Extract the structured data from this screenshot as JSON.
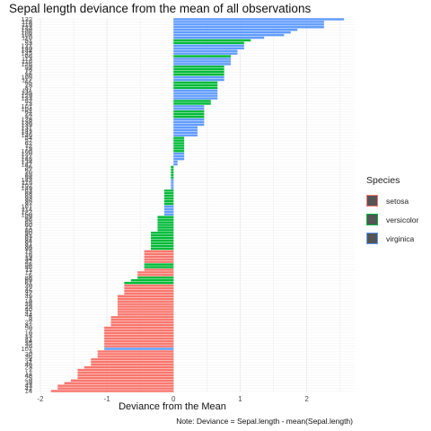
{
  "chart_data": {
    "type": "bar",
    "orientation": "horizontal",
    "title": "Sepal length deviance from the mean of all observations",
    "xlabel": "Deviance from the Mean",
    "ylabel": "",
    "caption": "Note: Deviance = Sepal.length - mean(Sepal.length)",
    "xlim": [
      -2.08,
      2.72
    ],
    "x_ticks": [
      -2,
      -1,
      0,
      1,
      2
    ],
    "grid": true,
    "legend": {
      "title": "Species",
      "position": "right",
      "entries": [
        {
          "name": "setosa",
          "color": "#F8766D"
        },
        {
          "name": "versicolor",
          "color": "#00BA38"
        },
        {
          "name": "virginica",
          "color": "#619CFF"
        }
      ]
    },
    "colors": {
      "setosa": "#F8766D",
      "versicolor": "#00BA38",
      "virginica": "#619CFF"
    },
    "bars": [
      {
        "label": "132",
        "value": 2.56,
        "species": "virginica"
      },
      {
        "label": "118",
        "value": 2.26,
        "species": "virginica"
      },
      {
        "label": "119",
        "value": 2.26,
        "species": "virginica"
      },
      {
        "label": "123",
        "value": 2.26,
        "species": "virginica"
      },
      {
        "label": "136",
        "value": 1.86,
        "species": "virginica"
      },
      {
        "label": "106",
        "value": 1.76,
        "species": "virginica"
      },
      {
        "label": "108",
        "value": 1.66,
        "species": "virginica"
      },
      {
        "label": "110",
        "value": 1.36,
        "species": "virginica"
      },
      {
        "label": "51",
        "value": 1.16,
        "species": "versicolor"
      },
      {
        "label": "53",
        "value": 1.06,
        "species": "versicolor"
      },
      {
        "label": "121",
        "value": 1.06,
        "species": "virginica"
      },
      {
        "label": "140",
        "value": 1.06,
        "species": "virginica"
      },
      {
        "label": "144",
        "value": 0.96,
        "species": "virginica"
      },
      {
        "label": "145",
        "value": 0.96,
        "species": "virginica"
      },
      {
        "label": "66",
        "value": 0.86,
        "species": "versicolor"
      },
      {
        "label": "113",
        "value": 0.86,
        "species": "virginica"
      },
      {
        "label": "116",
        "value": 0.86,
        "species": "virginica"
      },
      {
        "label": "126",
        "value": 0.86,
        "species": "virginica"
      },
      {
        "label": "59",
        "value": 0.76,
        "species": "versicolor"
      },
      {
        "label": "76",
        "value": 0.76,
        "species": "versicolor"
      },
      {
        "label": "77",
        "value": 0.76,
        "species": "versicolor"
      },
      {
        "label": "98",
        "value": 0.76,
        "species": "versicolor"
      },
      {
        "label": "105",
        "value": 0.76,
        "species": "virginica"
      },
      {
        "label": "117",
        "value": 0.76,
        "species": "virginica"
      },
      {
        "label": "55",
        "value": 0.66,
        "species": "versicolor"
      },
      {
        "label": "75",
        "value": 0.66,
        "species": "versicolor"
      },
      {
        "label": "87",
        "value": 0.66,
        "species": "versicolor"
      },
      {
        "label": "111",
        "value": 0.66,
        "species": "virginica"
      },
      {
        "label": "125",
        "value": 0.66,
        "species": "virginica"
      },
      {
        "label": "129",
        "value": 0.66,
        "species": "virginica"
      },
      {
        "label": "133",
        "value": 0.66,
        "species": "virginica"
      },
      {
        "label": "52",
        "value": 0.56,
        "species": "versicolor"
      },
      {
        "label": "73",
        "value": 0.56,
        "species": "versicolor"
      },
      {
        "label": "101",
        "value": 0.46,
        "species": "virginica"
      },
      {
        "label": "104",
        "value": 0.46,
        "species": "virginica"
      },
      {
        "label": "64",
        "value": 0.46,
        "species": "versicolor"
      },
      {
        "label": "74",
        "value": 0.46,
        "species": "versicolor"
      },
      {
        "label": "92",
        "value": 0.46,
        "species": "versicolor"
      },
      {
        "label": "128",
        "value": 0.46,
        "species": "virginica"
      },
      {
        "label": "138",
        "value": 0.46,
        "species": "virginica"
      },
      {
        "label": "139",
        "value": 0.46,
        "species": "virginica"
      },
      {
        "label": "131",
        "value": 0.36,
        "species": "virginica"
      },
      {
        "label": "141",
        "value": 0.36,
        "species": "virginica"
      },
      {
        "label": "142",
        "value": 0.36,
        "species": "virginica"
      },
      {
        "label": "146",
        "value": 0.36,
        "species": "virginica"
      },
      {
        "label": "54",
        "value": 0.16,
        "species": "versicolor"
      },
      {
        "label": "57",
        "value": 0.16,
        "species": "versicolor"
      },
      {
        "label": "62",
        "value": 0.16,
        "species": "versicolor"
      },
      {
        "label": "72",
        "value": 0.16,
        "species": "versicolor"
      },
      {
        "label": "79",
        "value": 0.16,
        "species": "versicolor"
      },
      {
        "label": "100",
        "value": 0.16,
        "species": "versicolor"
      },
      {
        "label": "120",
        "value": 0.16,
        "species": "virginica"
      },
      {
        "label": "127",
        "value": 0.16,
        "species": "virginica"
      },
      {
        "label": "148",
        "value": 0.16,
        "species": "virginica"
      },
      {
        "label": "134",
        "value": 0.06,
        "species": "virginica"
      },
      {
        "label": "147",
        "value": 0.06,
        "species": "virginica"
      },
      {
        "label": "56",
        "value": -0.04,
        "species": "versicolor"
      },
      {
        "label": "67",
        "value": -0.04,
        "species": "versicolor"
      },
      {
        "label": "70",
        "value": -0.04,
        "species": "versicolor"
      },
      {
        "label": "85",
        "value": -0.04,
        "species": "versicolor"
      },
      {
        "label": "88",
        "value": -0.04,
        "species": "versicolor"
      },
      {
        "label": "143",
        "value": -0.04,
        "species": "virginica"
      },
      {
        "label": "115",
        "value": -0.04,
        "species": "virginica"
      },
      {
        "label": "102",
        "value": -0.04,
        "species": "virginica"
      },
      {
        "label": "149",
        "value": -0.04,
        "species": "virginica"
      },
      {
        "label": "63",
        "value": -0.14,
        "species": "versicolor"
      },
      {
        "label": "68",
        "value": -0.14,
        "species": "versicolor"
      },
      {
        "label": "83",
        "value": -0.14,
        "species": "versicolor"
      },
      {
        "label": "93",
        "value": -0.14,
        "species": "versicolor"
      },
      {
        "label": "95",
        "value": -0.14,
        "species": "versicolor"
      },
      {
        "label": "97",
        "value": -0.14,
        "species": "versicolor"
      },
      {
        "label": "107",
        "value": -0.14,
        "species": "virginica"
      },
      {
        "label": "114",
        "value": -0.14,
        "species": "virginica"
      },
      {
        "label": "122",
        "value": -0.14,
        "species": "virginica"
      },
      {
        "label": "150",
        "value": -0.14,
        "species": "virginica"
      },
      {
        "label": "89",
        "value": -0.24,
        "species": "versicolor"
      },
      {
        "label": "96",
        "value": -0.24,
        "species": "versicolor"
      },
      {
        "label": "65",
        "value": -0.24,
        "species": "versicolor"
      },
      {
        "label": "60",
        "value": -0.24,
        "species": "versicolor"
      },
      {
        "label": "71",
        "value": -0.24,
        "species": "versicolor"
      },
      {
        "label": "80",
        "value": -0.24,
        "species": "versicolor"
      },
      {
        "label": "90",
        "value": -0.34,
        "species": "versicolor"
      },
      {
        "label": "81",
        "value": -0.34,
        "species": "versicolor"
      },
      {
        "label": "82",
        "value": -0.34,
        "species": "versicolor"
      },
      {
        "label": "84",
        "value": -0.34,
        "species": "versicolor"
      },
      {
        "label": "91",
        "value": -0.34,
        "species": "versicolor"
      },
      {
        "label": "94",
        "value": -0.34,
        "species": "versicolor"
      },
      {
        "label": "99",
        "value": -0.34,
        "species": "versicolor"
      },
      {
        "label": "15",
        "value": -0.44,
        "species": "setosa"
      },
      {
        "label": "16",
        "value": -0.44,
        "species": "setosa"
      },
      {
        "label": "19",
        "value": -0.44,
        "species": "setosa"
      },
      {
        "label": "34",
        "value": -0.44,
        "species": "setosa"
      },
      {
        "label": "37",
        "value": -0.44,
        "species": "setosa"
      },
      {
        "label": "58",
        "value": -0.44,
        "species": "versicolor"
      },
      {
        "label": "86",
        "value": -0.44,
        "species": "versicolor"
      },
      {
        "label": "11",
        "value": -0.44,
        "species": "setosa"
      },
      {
        "label": "17",
        "value": -0.54,
        "species": "setosa"
      },
      {
        "label": "6",
        "value": -0.54,
        "species": "setosa"
      },
      {
        "label": "86",
        "value": -0.54,
        "species": "versicolor"
      },
      {
        "label": "69",
        "value": -0.64,
        "species": "versicolor"
      },
      {
        "label": "61",
        "value": -0.74,
        "species": "versicolor"
      },
      {
        "label": "20",
        "value": -0.74,
        "species": "setosa"
      },
      {
        "label": "22",
        "value": -0.74,
        "species": "setosa"
      },
      {
        "label": "45",
        "value": -0.74,
        "species": "setosa"
      },
      {
        "label": "47",
        "value": -0.74,
        "species": "setosa"
      },
      {
        "label": "49",
        "value": -0.84,
        "species": "setosa"
      },
      {
        "label": "1",
        "value": -0.84,
        "species": "setosa"
      },
      {
        "label": "18",
        "value": -0.84,
        "species": "setosa"
      },
      {
        "label": "28",
        "value": -0.84,
        "species": "setosa"
      },
      {
        "label": "29",
        "value": -0.84,
        "species": "setosa"
      },
      {
        "label": "40",
        "value": -0.84,
        "species": "setosa"
      },
      {
        "label": "41",
        "value": -0.84,
        "species": "setosa"
      },
      {
        "label": "44",
        "value": -0.84,
        "species": "setosa"
      },
      {
        "label": "5",
        "value": -0.94,
        "species": "setosa"
      },
      {
        "label": "8",
        "value": -0.94,
        "species": "setosa"
      },
      {
        "label": "27",
        "value": -0.94,
        "species": "setosa"
      },
      {
        "label": "32",
        "value": -0.94,
        "species": "setosa"
      },
      {
        "label": "50",
        "value": -1.04,
        "species": "setosa"
      },
      {
        "label": "2",
        "value": -1.04,
        "species": "setosa"
      },
      {
        "label": "10",
        "value": -1.04,
        "species": "setosa"
      },
      {
        "label": "13",
        "value": -1.04,
        "species": "setosa"
      },
      {
        "label": "21",
        "value": -1.04,
        "species": "setosa"
      },
      {
        "label": "24",
        "value": -1.04,
        "species": "setosa"
      },
      {
        "label": "35",
        "value": -1.04,
        "species": "setosa"
      },
      {
        "label": "26",
        "value": -1.04,
        "species": "setosa"
      },
      {
        "label": "107",
        "value": -1.04,
        "species": "virginica"
      },
      {
        "label": "3",
        "value": -1.14,
        "species": "setosa"
      },
      {
        "label": "30",
        "value": -1.14,
        "species": "setosa"
      },
      {
        "label": "36",
        "value": -1.14,
        "species": "setosa"
      },
      {
        "label": "4",
        "value": -1.24,
        "species": "setosa"
      },
      {
        "label": "31",
        "value": -1.24,
        "species": "setosa"
      },
      {
        "label": "46",
        "value": -1.24,
        "species": "setosa"
      },
      {
        "label": "23",
        "value": -1.34,
        "species": "setosa"
      },
      {
        "label": "7",
        "value": -1.44,
        "species": "setosa"
      },
      {
        "label": "12",
        "value": -1.44,
        "species": "setosa"
      },
      {
        "label": "48",
        "value": -1.44,
        "species": "setosa"
      },
      {
        "label": "25",
        "value": -1.44,
        "species": "setosa"
      },
      {
        "label": "9",
        "value": -1.54,
        "species": "setosa"
      },
      {
        "label": "39",
        "value": -1.64,
        "species": "setosa"
      },
      {
        "label": "43",
        "value": -1.74,
        "species": "setosa"
      },
      {
        "label": "42",
        "value": -1.74,
        "species": "setosa"
      },
      {
        "label": "14",
        "value": -1.84,
        "species": "setosa"
      }
    ]
  }
}
